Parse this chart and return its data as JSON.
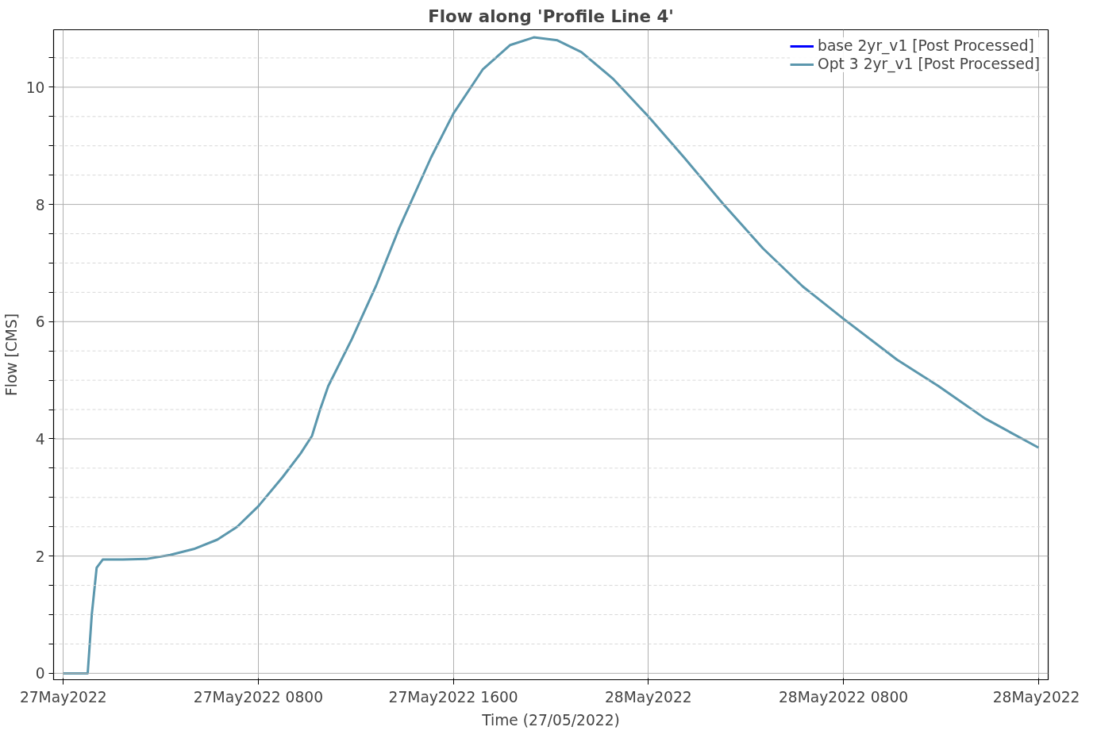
{
  "chart_data": {
    "type": "line",
    "title": "Flow along 'Profile Line 4'",
    "xlabel": "Time (27/05/2022)",
    "ylabel": "Flow [CMS]",
    "x": [
      "2022-05-27T00:00",
      "2022-05-27T01:00",
      "2022-05-27T01:10",
      "2022-05-27T01:22",
      "2022-05-27T01:37",
      "2022-05-27T02:26",
      "2022-05-27T03:24",
      "2022-05-27T04:23",
      "2022-05-27T05:21",
      "2022-05-27T06:19",
      "2022-05-27T07:08",
      "2022-05-27T08:00",
      "2022-05-27T09:00",
      "2022-05-27T09:44",
      "2022-05-27T10:12",
      "2022-05-27T10:32",
      "2022-05-27T10:52",
      "2022-05-27T11:50",
      "2022-05-27T12:49",
      "2022-05-27T13:47",
      "2022-05-27T15:05",
      "2022-05-27T16:00",
      "2022-05-27T17:12",
      "2022-05-27T18:20",
      "2022-05-27T19:18",
      "2022-05-27T20:16",
      "2022-05-27T21:15",
      "2022-05-27T22:32",
      "2022-05-28T00:00",
      "2022-05-28T01:28",
      "2022-05-28T03:05",
      "2022-05-28T04:42",
      "2022-05-28T06:20",
      "2022-05-28T08:00",
      "2022-05-28T10:12",
      "2022-05-28T11:54",
      "2022-05-28T13:48",
      "2022-05-28T16:00"
    ],
    "series": [
      {
        "name": "base 2yr_v1 [Post Processed]",
        "color": "#0000ff",
        "values": [
          null,
          null,
          null,
          null,
          null,
          null,
          null,
          null,
          null,
          null,
          null,
          null,
          null,
          null,
          null,
          null,
          null,
          null,
          null,
          null,
          null,
          null,
          null,
          null,
          null,
          null,
          null,
          null,
          null,
          null,
          null,
          null,
          null,
          null,
          null,
          null,
          null,
          null
        ]
      },
      {
        "name": "Opt 3 2yr_v1 [Post Processed]",
        "color": "#5b97ad",
        "values": [
          0,
          0,
          1.0,
          1.8,
          1.94,
          1.94,
          1.95,
          2.02,
          2.12,
          2.28,
          2.5,
          2.85,
          3.35,
          3.75,
          4.05,
          4.5,
          4.9,
          5.7,
          6.6,
          7.6,
          8.8,
          9.55,
          10.3,
          10.72,
          10.85,
          10.8,
          10.6,
          10.15,
          9.5,
          8.8,
          8.0,
          7.25,
          6.6,
          6.05,
          5.35,
          4.9,
          4.35,
          3.85
        ]
      }
    ],
    "xlim": [
      "2022-05-26T23:36",
      "2022-05-28T16:24"
    ],
    "ylim": [
      -0.11,
      10.98
    ],
    "xticks": [
      {
        "value": "2022-05-27T00:00",
        "label": "27May2022"
      },
      {
        "value": "2022-05-27T08:00",
        "label": "27May2022 0800"
      },
      {
        "value": "2022-05-27T16:00",
        "label": "27May2022 1600"
      },
      {
        "value": "2022-05-28T00:00",
        "label": "28May2022"
      },
      {
        "value": "2022-05-28T08:00",
        "label": "28May2022 0800"
      },
      {
        "value": "2022-05-28T16:00",
        "label": "28May2022"
      }
    ],
    "yticks": [
      0,
      {
        "value": 0.5,
        "label": null
      },
      {
        "value": 1,
        "label": null
      },
      {
        "value": 1.5,
        "label": null
      },
      2,
      {
        "value": 2.5,
        "label": null
      },
      {
        "value": 3,
        "label": null
      },
      {
        "value": 3.5,
        "label": null
      },
      4,
      {
        "value": 4.5,
        "label": null
      },
      {
        "value": 5,
        "label": null
      },
      {
        "value": 5.5,
        "label": null
      },
      6,
      {
        "value": 6.5,
        "label": null
      },
      {
        "value": 7,
        "label": null
      },
      {
        "value": 7.5,
        "label": null
      },
      8,
      {
        "value": 8.5,
        "label": null
      },
      {
        "value": 9,
        "label": null
      },
      {
        "value": 9.5,
        "label": null
      },
      10,
      {
        "value": 10.5,
        "label": null
      }
    ],
    "grid": true,
    "legend": "top right",
    "line_style": "solid",
    "marker": "none"
  }
}
